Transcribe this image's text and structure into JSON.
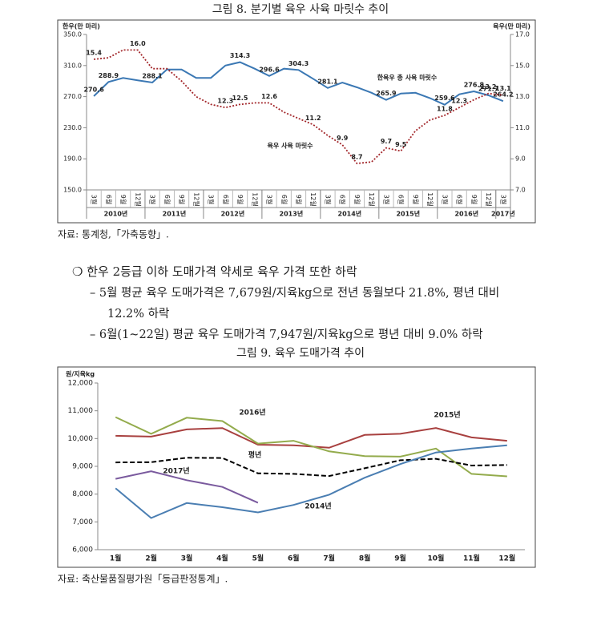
{
  "chart_data": [
    {
      "type": "line",
      "title": "그림 8. 분기별 육우 사육 마릿수 추이",
      "y_label": "한우(만 마리)",
      "y2_label": "육우(만 마리)",
      "categories": [
        "3월",
        "6월",
        "9월",
        "12월",
        "3월",
        "6월",
        "9월",
        "12월",
        "3월",
        "6월",
        "9월",
        "12월",
        "3월",
        "6월",
        "9월",
        "12월",
        "3월",
        "6월",
        "9월",
        "12월",
        "3월",
        "6월",
        "9월",
        "12월",
        "3월",
        "6월",
        "9월",
        "12월",
        "3월"
      ],
      "x_groups": [
        "2010년",
        "2011년",
        "2012년",
        "2013년",
        "2014년",
        "2015년",
        "2016년",
        "2017년"
      ],
      "ylim": [
        150,
        350
      ],
      "yticks": [
        {
          "value": 150,
          "label": "150.0"
        },
        {
          "value": 190,
          "label": "190.0"
        },
        {
          "value": 230,
          "label": "230.0"
        },
        {
          "value": 270,
          "label": "270.0"
        },
        {
          "value": 310,
          "label": "310.0"
        },
        {
          "value": 350,
          "label": "350.0"
        }
      ],
      "y2lim": [
        7,
        17
      ],
      "y2ticks": [
        {
          "value": 7,
          "label": "7.0"
        },
        {
          "value": 9,
          "label": "9.0"
        },
        {
          "value": 11,
          "label": "11.0"
        },
        {
          "value": 13,
          "label": "13.0"
        },
        {
          "value": 15,
          "label": "15.0"
        },
        {
          "value": 17,
          "label": "17.0"
        }
      ],
      "grid": false,
      "series": [
        {
          "name": "한육우 총 사육 마릿수",
          "color": "#3b78b4",
          "label_color": "#333333",
          "line_style": "solid",
          "values": [
            270.6,
            288.9,
            294,
            291,
            288.1,
            305,
            305,
            294,
            294,
            310,
            314.3,
            306,
            296.6,
            306,
            304.3,
            293,
            281.1,
            288,
            282,
            275,
            265.9,
            274,
            275,
            268,
            259.6,
            273,
            276.8,
            271.7,
            264.2
          ],
          "value_labels": [
            "270.6",
            "288.9",
            null,
            null,
            "288.1",
            null,
            null,
            null,
            null,
            null,
            "314.3",
            null,
            "296.6",
            null,
            "304.3",
            null,
            "281.1",
            null,
            null,
            null,
            "265.9",
            null,
            null,
            null,
            "259.6",
            null,
            "276.8",
            "271.7",
            "264.2"
          ]
        },
        {
          "name": "육우 사육 마릿수",
          "color": "#a3282c",
          "label_color": "#e0781e",
          "line_style": "dotted",
          "axis": "y2",
          "values": [
            15.4,
            15.5,
            16.0,
            16.0,
            14.8,
            14.8,
            14.0,
            13.0,
            12.5,
            12.3,
            12.5,
            12.6,
            12.6,
            12.0,
            11.6,
            11.2,
            10.5,
            9.9,
            8.7,
            8.8,
            9.7,
            9.5,
            10.8,
            11.5,
            11.8,
            12.3,
            12.8,
            13.2,
            13.1
          ],
          "value_labels": [
            "15.4",
            null,
            null,
            "16.0",
            null,
            null,
            null,
            null,
            null,
            "12.3",
            "12.5",
            null,
            "12.6",
            null,
            null,
            "11.2",
            null,
            "9.9",
            "8.7",
            null,
            "9.7",
            "9.5",
            null,
            null,
            "11.8",
            "12.3",
            null,
            "13.2",
            "13.1"
          ]
        }
      ]
    },
    {
      "type": "line",
      "title": "그림 9. 육우 도매가격 추이",
      "y_label": "원/지육kg",
      "categories": [
        "1월",
        "2월",
        "3월",
        "4월",
        "5월",
        "6월",
        "7월",
        "8월",
        "9월",
        "10월",
        "11월",
        "12월"
      ],
      "ylim": [
        6000,
        12000
      ],
      "yticks": [
        {
          "value": 6000,
          "label": "6,000"
        },
        {
          "value": 7000,
          "label": "7,000"
        },
        {
          "value": 8000,
          "label": "8,000"
        },
        {
          "value": 9000,
          "label": "9,000"
        },
        {
          "value": 10000,
          "label": "10,000"
        },
        {
          "value": 11000,
          "label": "11,000"
        },
        {
          "value": 12000,
          "label": "12,000"
        }
      ],
      "grid": false,
      "series": [
        {
          "name": "2015년",
          "color": "#a8403f",
          "line_style": "solid",
          "values": [
            10100,
            10070,
            10330,
            10380,
            9780,
            9760,
            9670,
            10130,
            10170,
            10380,
            10040,
            9920
          ]
        },
        {
          "name": "2016년",
          "color": "#93ab4c",
          "line_style": "solid",
          "values": [
            10770,
            10170,
            10750,
            10630,
            9820,
            9920,
            9540,
            9370,
            9350,
            9640,
            8730,
            8640
          ]
        },
        {
          "name": "평년",
          "color": "#000000",
          "line_style": "dashed",
          "values": [
            9140,
            9150,
            9310,
            9300,
            8750,
            8730,
            8650,
            8930,
            9220,
            9270,
            9030,
            9050
          ]
        },
        {
          "name": "2017년",
          "color": "#7a5a9e",
          "line_style": "solid",
          "values": [
            8550,
            8820,
            8500,
            8260,
            7690,
            null,
            null,
            null,
            null,
            null,
            null,
            null
          ]
        },
        {
          "name": "2014년",
          "color": "#4a7eb2",
          "line_style": "solid",
          "values": [
            8210,
            7140,
            7680,
            7530,
            7340,
            7610,
            7980,
            8590,
            9080,
            9500,
            9640,
            9760
          ]
        }
      ]
    }
  ],
  "source_1": "자료: 통계청,「가축동향」.",
  "bullet": "❍ 한우 2등급 이하 도매가격 약세로 육우 가격 또한 하락",
  "items": [
    [
      "– 5월 평균 육우 도매가격은 7,679원/지육kg으로 전년 동월보다 21.8%, 평년 대비",
      "12.2% 하락"
    ],
    [
      "– 6월(1~22일) 평균 육우 도매가격 7,947원/지육kg으로 평년 대비 9.0% 하락"
    ]
  ],
  "source_2": "자료: 축산물품질평가원「등급판정통계」."
}
